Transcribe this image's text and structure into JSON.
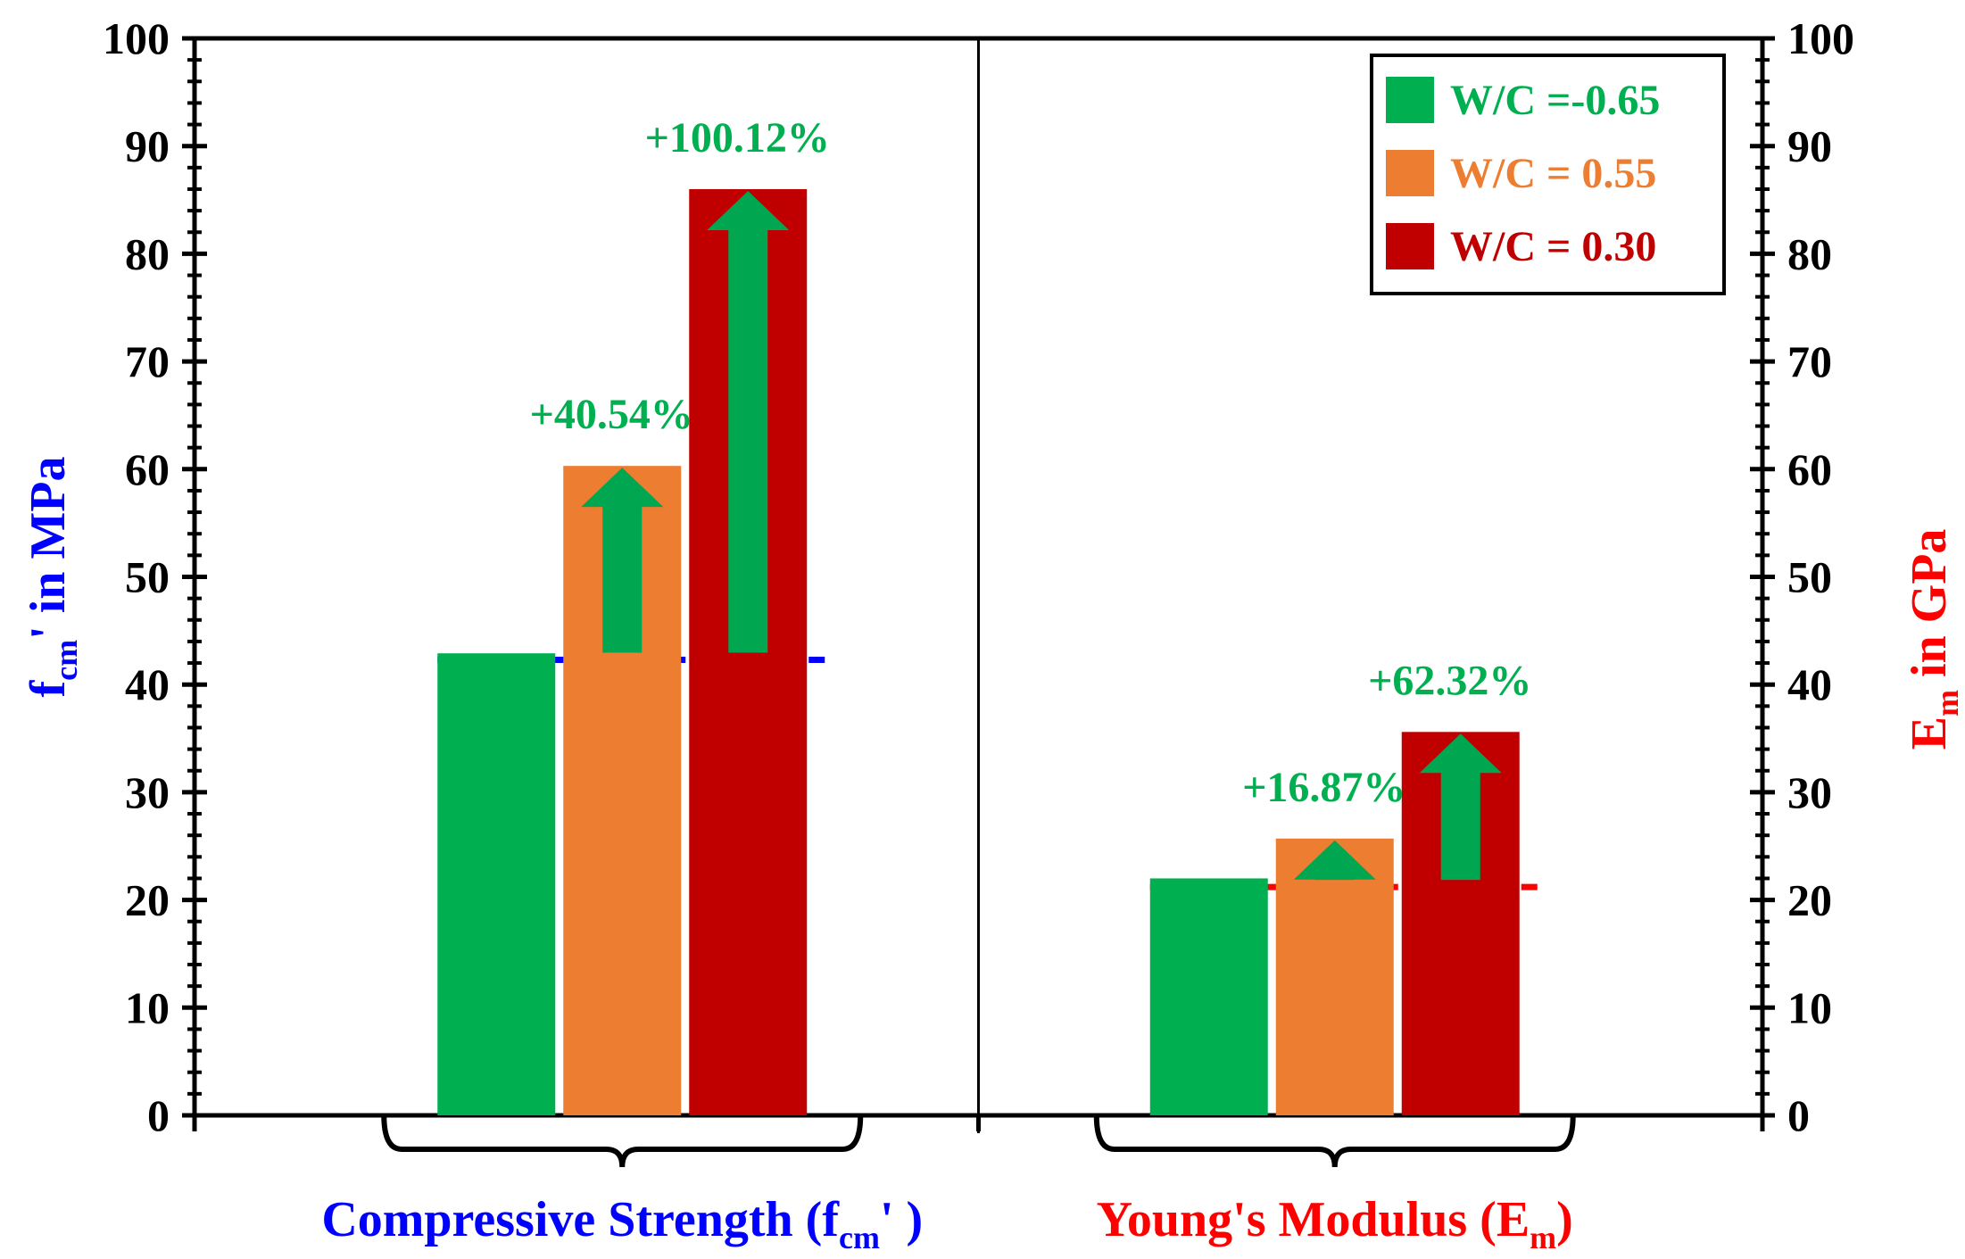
{
  "chart_data": {
    "type": "bar",
    "groups": [
      {
        "name": "Compressive Strength",
        "label_main": "Compressive Strength (f",
        "label_sub": "cm",
        "label_end": "' )",
        "label_color": "#0000FF",
        "axis": "left",
        "values": [
          42.9,
          60.3,
          86.0
        ],
        "baseline": 42.3,
        "annotations": [
          "+40.54%",
          "+100.12%"
        ]
      },
      {
        "name": "Young's Modulus",
        "label_main": "Young's Modulus (E",
        "label_sub": "m",
        "label_end": ")",
        "label_color": "#FF0000",
        "axis": "right",
        "values": [
          22.0,
          25.7,
          35.6
        ],
        "baseline": 21.2,
        "annotations": [
          "+16.87%",
          "+62.32%"
        ]
      }
    ],
    "series": [
      {
        "name": "W/C =-0.65",
        "color": "#00B050"
      },
      {
        "name": "W/C = 0.55",
        "color": "#ED7D31"
      },
      {
        "name": "W/C = 0.30",
        "color": "#C00000"
      }
    ],
    "left_axis": {
      "label_main": "f",
      "label_sub": "cm",
      "label_end": "' in MPa",
      "color": "#0000FF",
      "range": [
        0,
        100
      ],
      "ticks": [
        "0",
        "10",
        "20",
        "30",
        "40",
        "50",
        "60",
        "70",
        "80",
        "90",
        "100"
      ]
    },
    "right_axis": {
      "label_main": "E",
      "label_sub": "m",
      "label_end": " in GPa",
      "color": "#FF0000",
      "range": [
        0,
        100
      ],
      "ticks": [
        "0",
        "10",
        "20",
        "30",
        "40",
        "50",
        "60",
        "70",
        "80",
        "90",
        "100"
      ]
    },
    "annotation_color": "#00B050",
    "arrow_color": "#00A650",
    "legend_position": "top-right"
  }
}
